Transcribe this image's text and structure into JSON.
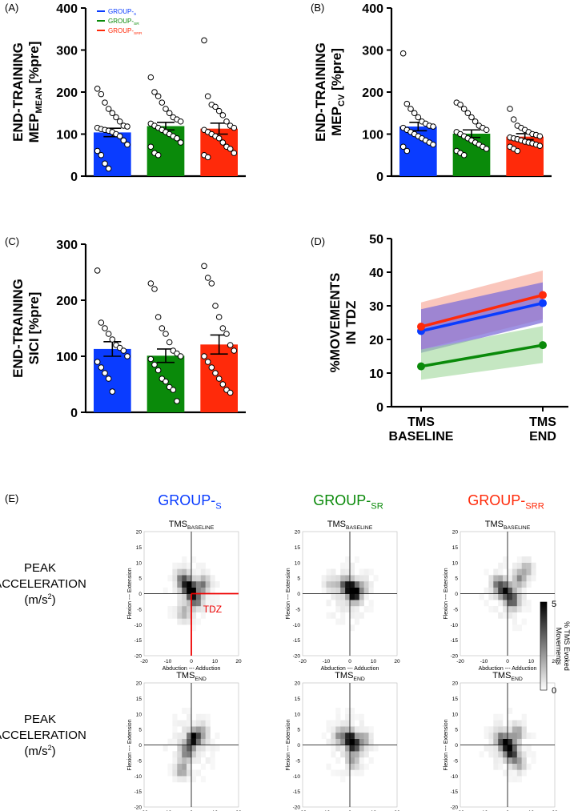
{
  "colors": {
    "blue": "#0a3cff",
    "green": "#0a8a0a",
    "red": "#ff2a0a",
    "blue_band": "#7f6fd9",
    "red_band": "#f7a08f",
    "green_band": "#9ed79a"
  },
  "chart_data": [
    {
      "id": "A",
      "panel_label": "(A)",
      "type": "bar",
      "ylabel_lines": [
        "END-TRAINING",
        "MEP",
        "MEAN",
        " [%pre]"
      ],
      "ylim": [
        0,
        400
      ],
      "yticks": [
        "0",
        "100",
        "200",
        "300",
        "400"
      ],
      "categories": [
        "GROUP-S",
        "GROUP-SR",
        "GROUP-SRR"
      ],
      "values": [
        104,
        119,
        113
      ],
      "errors": [
        10,
        9,
        13
      ],
      "points": [
        [
          208,
          195,
          175,
          160,
          150,
          140,
          130,
          120,
          118,
          115,
          112,
          110,
          108,
          105,
          100,
          95,
          85,
          75,
          60,
          50,
          30,
          18
        ],
        [
          235,
          200,
          190,
          175,
          160,
          150,
          140,
          135,
          130,
          125,
          120,
          115,
          110,
          105,
          100,
          95,
          90,
          80,
          70,
          55,
          50
        ],
        [
          323,
          190,
          170,
          165,
          155,
          145,
          130,
          120,
          115,
          110,
          105,
          100,
          95,
          90,
          80,
          70,
          65,
          55,
          50,
          45
        ]
      ],
      "legend": [
        {
          "label": "GROUP-",
          "sub": "S"
        },
        {
          "label": "GROUP-",
          "sub": "SR"
        },
        {
          "label": "GROUP-",
          "sub": "SRR"
        }
      ]
    },
    {
      "id": "B",
      "panel_label": "(B)",
      "type": "bar",
      "ylabel_lines": [
        "END-TRAINING",
        "MEP",
        "CV",
        " [%pre]"
      ],
      "ylim": [
        0,
        400
      ],
      "yticks": [
        "0",
        "100",
        "200",
        "300",
        "400"
      ],
      "categories": [
        "GROUP-S",
        "GROUP-SR",
        "GROUP-SRR"
      ],
      "values": [
        118,
        101,
        94
      ],
      "errors": [
        10,
        9,
        7
      ],
      "points": [
        [
          292,
          172,
          160,
          150,
          140,
          130,
          125,
          120,
          118,
          115,
          110,
          105,
          100,
          95,
          90,
          85,
          80,
          75,
          70,
          60
        ],
        [
          175,
          170,
          160,
          150,
          140,
          130,
          120,
          115,
          110,
          105,
          100,
          95,
          90,
          85,
          80,
          75,
          70,
          65,
          60,
          55,
          50
        ],
        [
          160,
          135,
          120,
          115,
          110,
          105,
          100,
          98,
          95,
          92,
          90,
          88,
          85,
          82,
          80,
          78,
          75,
          72,
          70,
          65,
          60
        ]
      ]
    },
    {
      "id": "C",
      "panel_label": "(C)",
      "type": "bar",
      "ylabel_lines": [
        "END-TRAINING",
        "SICI [%pre]"
      ],
      "ylim": [
        0,
        300
      ],
      "yticks": [
        "0",
        "100",
        "200",
        "300"
      ],
      "categories": [
        "GROUP-S",
        "GROUP-SR",
        "GROUP-SRR"
      ],
      "values": [
        113,
        101,
        121
      ],
      "errors": [
        13,
        12,
        17
      ],
      "points": [
        [
          253,
          160,
          150,
          140,
          130,
          120,
          115,
          110,
          100,
          90,
          80,
          70,
          60,
          37
        ],
        [
          230,
          220,
          170,
          150,
          140,
          125,
          110,
          105,
          100,
          95,
          85,
          75,
          60,
          55,
          45,
          40,
          20
        ],
        [
          261,
          240,
          230,
          190,
          170,
          150,
          140,
          120,
          110,
          100,
          90,
          80,
          70,
          60,
          50,
          40,
          35
        ]
      ]
    },
    {
      "id": "D",
      "panel_label": "(D)",
      "type": "line",
      "ylabel_lines": [
        "%MOVEMENTS",
        "IN TDZ"
      ],
      "ylim": [
        0,
        50
      ],
      "yticks": [
        "0",
        "10",
        "20",
        "30",
        "40",
        "50"
      ],
      "x_labels": [
        [
          "TMS",
          "BASELINE"
        ],
        [
          "TMS",
          "END"
        ]
      ],
      "series": [
        {
          "name": "GROUP-S",
          "values": [
            22.5,
            30.8
          ],
          "band_low": [
            16,
            25
          ],
          "band_high": [
            29,
            37
          ]
        },
        {
          "name": "GROUP-SR",
          "values": [
            12,
            18.3
          ],
          "band_low": [
            8,
            13
          ],
          "band_high": [
            17,
            24
          ]
        },
        {
          "name": "GROUP-SRR",
          "values": [
            23.8,
            33.2
          ],
          "band_low": [
            17,
            26
          ],
          "band_high": [
            31,
            40.5
          ]
        }
      ]
    },
    {
      "id": "E",
      "panel_label": "(E)",
      "type": "heatmap",
      "groups": [
        {
          "label": "GROUP-",
          "sub": "S"
        },
        {
          "label": "GROUP-",
          "sub": "SR"
        },
        {
          "label": "GROUP-",
          "sub": "SRR"
        }
      ],
      "row_titles": [
        {
          "label": "TMS",
          "sub": "BASELINE"
        },
        {
          "label": "TMS",
          "sub": "END"
        }
      ],
      "row_ylabel_lines": [
        "PEAK",
        "ACCELERATION",
        "(m/s",
        "2",
        ")"
      ],
      "axis_ticks": [
        "-20",
        "-10",
        "0",
        "10",
        "20"
      ],
      "y_axis_ticks": [
        "20",
        "15",
        "10",
        "5",
        "0",
        "-5",
        "-10",
        "-15",
        "-20"
      ],
      "xlabel": "Abduction  ---  Adduction",
      "ylabel": "Flexion  ---  Extension",
      "tdz_label": "TDZ",
      "colorbar": {
        "label_lines": [
          "% TMS Evoked",
          "Movements"
        ],
        "min": "0",
        "max": "5"
      },
      "blobs": [
        [
          [
            0,
            1,
            5
          ],
          [
            -2,
            3,
            3.5
          ],
          [
            2,
            -2,
            3
          ],
          [
            -4,
            5,
            2
          ],
          [
            5,
            3,
            2.5
          ],
          [
            -3,
            -6,
            1.5
          ]
        ],
        [
          [
            0,
            2,
            4
          ],
          [
            2,
            0,
            5
          ],
          [
            -3,
            3,
            2
          ],
          [
            5,
            2,
            1.5
          ],
          [
            -8,
            3,
            1
          ]
        ],
        [
          [
            -1,
            1,
            4
          ],
          [
            2,
            -2,
            3.5
          ],
          [
            -4,
            3,
            2.5
          ],
          [
            5,
            5,
            2
          ],
          [
            8,
            8,
            1.5
          ]
        ],
        [
          [
            1,
            2,
            5
          ],
          [
            -2,
            -2,
            3
          ],
          [
            4,
            4,
            2
          ],
          [
            -4,
            -8,
            2
          ]
        ],
        [
          [
            0,
            2,
            4.5
          ],
          [
            2,
            0,
            4
          ],
          [
            -4,
            3,
            2
          ],
          [
            6,
            2,
            1.5
          ],
          [
            1,
            -5,
            1.5
          ]
        ],
        [
          [
            0,
            0,
            5
          ],
          [
            2,
            -3,
            3.5
          ],
          [
            -3,
            2,
            2.5
          ],
          [
            4,
            4,
            2
          ],
          [
            5,
            -6,
            1.5
          ]
        ]
      ]
    }
  ]
}
